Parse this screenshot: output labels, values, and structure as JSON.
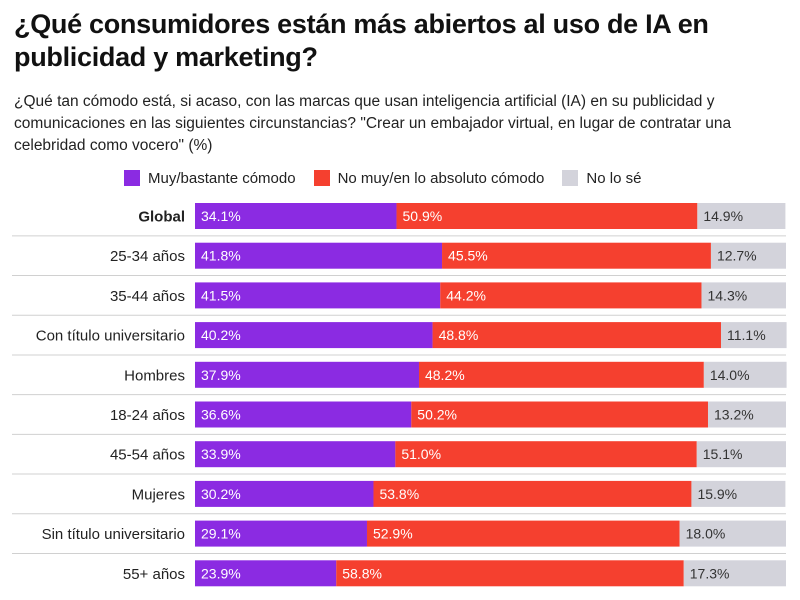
{
  "title": "¿Qué consumidores están más abiertos al uso de IA en publicidad y marketing?",
  "subtitle": "¿Qué tan cómodo está, si acaso, con las marcas que usan inteligencia artificial (IA) en su publicidad y comunicaciones en las siguientes circunstancias? \"Crear un embajador virtual, en lugar de contratar una celebridad como vocero\" (%)",
  "colors": {
    "comfortable": "#8b2be2",
    "not_comfortable": "#f5402f",
    "dont_know": "#d3d3db",
    "divider": "#d0d0d0"
  },
  "chart_data": {
    "type": "bar",
    "orientation": "horizontal",
    "stacked": true,
    "categories": [
      "Global",
      "25-34 años",
      "35-44 años",
      "Con título universitario",
      "Hombres",
      "18-24 años",
      "45-54 años",
      "Mujeres",
      "Sin título universitario",
      "55+ años"
    ],
    "highlight_category": "Global",
    "series": [
      {
        "name": "Muy/bastante cómodo",
        "values": [
          34.1,
          41.8,
          41.5,
          40.2,
          37.9,
          36.6,
          33.9,
          30.2,
          29.1,
          23.9
        ],
        "labels": [
          "34.1%",
          "41.8%",
          "41.5%",
          "40.2%",
          "37.9%",
          "36.6%",
          "33.9%",
          "30.2%",
          "29.1%",
          "23.9%"
        ]
      },
      {
        "name": "No muy/en lo absoluto cómodo",
        "values": [
          50.9,
          45.5,
          44.2,
          48.8,
          48.2,
          50.2,
          51.0,
          53.8,
          52.9,
          58.8
        ],
        "labels": [
          "50.9%",
          "45.5%",
          "44.2%",
          "48.8%",
          "48.2%",
          "50.2%",
          "51.0%",
          "53.8%",
          "52.9%",
          "58.8%"
        ]
      },
      {
        "name": "No lo sé",
        "values": [
          14.9,
          12.7,
          14.3,
          11.1,
          14.0,
          13.2,
          15.1,
          15.9,
          18.0,
          17.3
        ],
        "labels": [
          "14.9%",
          "12.7%",
          "14.3%",
          "11.1%",
          "14.0%",
          "13.2%",
          "15.1%",
          "15.9%",
          "18.0%",
          "17.3%"
        ]
      }
    ],
    "xlim": [
      0,
      100
    ],
    "legend": "top",
    "grid": false
  }
}
